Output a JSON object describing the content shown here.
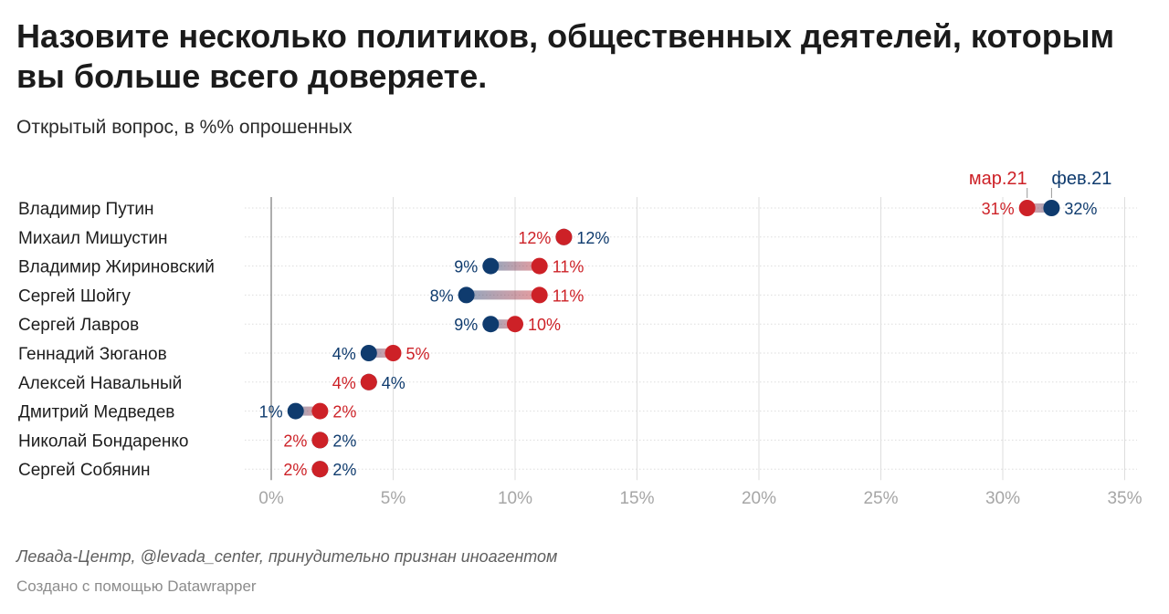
{
  "title": "Назовите несколько политиков, общественных деятелей, которым вы больше всего доверяете.",
  "subtitle": "Открытый вопрос, в %% опрошенных",
  "source": "Левада-Центр, @levada_center, принудительно признан иноагентом",
  "credit": "Создано с помощью Datawrapper",
  "colors": {
    "mar": "#cd2127",
    "feb": "#0f3b6e",
    "grid": "#dddddd",
    "axis": "#777777",
    "tick": "#a6a6a6"
  },
  "chart_data": {
    "type": "dot-range",
    "title": "Назовите несколько политиков, общественных деятелей, которым вы больше всего доверяете.",
    "subtitle": "Открытый вопрос, в %% опрошенных",
    "series": [
      {
        "key": "mar",
        "name": "мар.21"
      },
      {
        "key": "feb",
        "name": "фев.21"
      }
    ],
    "categories": [
      "Владимир Путин",
      "Михаил Мишустин",
      "Владимир Жириновский",
      "Сергей Шойгу",
      "Сергей Лавров",
      "Геннадий Зюганов",
      "Алексей Навальный",
      "Дмитрий Медведев",
      "Николай Бондаренко",
      "Сергей Собянин"
    ],
    "mar": [
      31,
      12,
      11,
      11,
      10,
      5,
      4,
      2,
      2,
      2
    ],
    "feb": [
      32,
      12,
      9,
      8,
      9,
      4,
      4,
      1,
      2,
      2
    ],
    "value_labels": {
      "mar": [
        "31%",
        "12%",
        "11%",
        "11%",
        "10%",
        "5%",
        "4%",
        "2%",
        "2%",
        "2%"
      ],
      "feb": [
        "32%",
        "12%",
        "9%",
        "8%",
        "9%",
        "4%",
        "4%",
        "1%",
        "2%",
        "2%"
      ]
    },
    "x_ticks": [
      0,
      5,
      10,
      15,
      20,
      25,
      30,
      35
    ],
    "x_tick_labels": [
      "0%",
      "5%",
      "10%",
      "15%",
      "20%",
      "25%",
      "30%",
      "35%"
    ],
    "xlim": [
      0,
      35
    ],
    "legend_position": "top-right"
  }
}
